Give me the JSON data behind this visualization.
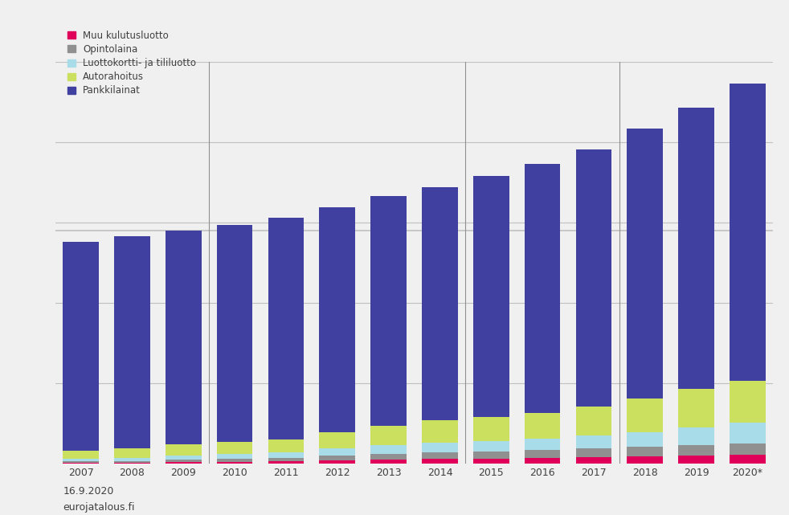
{
  "categories": [
    "2007",
    "2008",
    "2009",
    "2010",
    "2011",
    "2012",
    "2013",
    "2014",
    "2015",
    "2016",
    "2017",
    "2018",
    "2019",
    "2020*"
  ],
  "series": [
    {
      "label": "Muu kulutusluotto",
      "color": "#e0005a",
      "values": [
        0.05,
        0.05,
        0.08,
        0.1,
        0.15,
        0.2,
        0.25,
        0.28,
        0.3,
        0.35,
        0.4,
        0.45,
        0.5,
        0.55
      ]
    },
    {
      "label": "Opintolaina",
      "color": "#909090",
      "values": [
        0.1,
        0.12,
        0.15,
        0.18,
        0.22,
        0.28,
        0.35,
        0.4,
        0.45,
        0.5,
        0.55,
        0.6,
        0.65,
        0.7
      ]
    },
    {
      "label": "Luottokortti- ja tililuotto",
      "color": "#a8dce8",
      "values": [
        0.15,
        0.2,
        0.25,
        0.3,
        0.35,
        0.45,
        0.55,
        0.6,
        0.65,
        0.7,
        0.8,
        0.9,
        1.1,
        1.3
      ]
    },
    {
      "label": "Autorahoitus",
      "color": "#cce060",
      "values": [
        0.5,
        0.6,
        0.7,
        0.75,
        0.8,
        1.0,
        1.2,
        1.4,
        1.5,
        1.6,
        1.8,
        2.1,
        2.4,
        2.6
      ]
    },
    {
      "label": "Pankkilainat",
      "color": "#4040a0",
      "values": [
        13.0,
        13.2,
        13.3,
        13.5,
        13.8,
        14.0,
        14.3,
        14.5,
        15.0,
        15.5,
        16.0,
        16.8,
        17.5,
        18.5
      ]
    }
  ],
  "ylim": [
    0,
    25
  ],
  "ytick_positions": [
    5,
    10,
    15,
    20,
    25
  ],
  "background_color": "#f0f0f0",
  "plot_bg_color": "#f0f0f0",
  "text_color": "#404040",
  "grid_color": "#c0c0c0",
  "vline_color": "#909090",
  "vline_positions": [
    2.5,
    7.5,
    10.5
  ],
  "hline_position": 14.5,
  "legend_fontsize": 8.5,
  "footer_date": "16.9.2020",
  "footer_source": "eurojatalous.fi",
  "bar_width": 0.7
}
